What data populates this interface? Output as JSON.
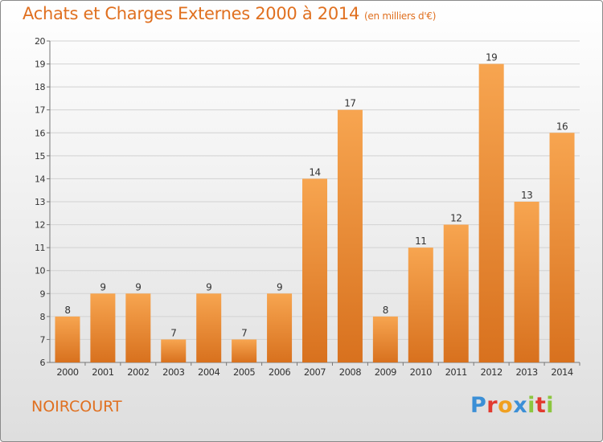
{
  "title": "Achats et Charges Externes 2000 à 2014",
  "subtitle": "(en milliers d'€)",
  "city": "NOIRCOURT",
  "logo": {
    "text": "Proxiti",
    "letters": [
      {
        "ch": "P",
        "color": "#3b8fd6"
      },
      {
        "ch": "r",
        "color": "#e23a2f"
      },
      {
        "ch": "o",
        "color": "#f0a020"
      },
      {
        "ch": "x",
        "color": "#3b8fd6"
      },
      {
        "ch": "i",
        "color": "#8cc63f"
      },
      {
        "ch": "t",
        "color": "#e23a2f"
      },
      {
        "ch": "i",
        "color": "#8cc63f"
      }
    ]
  },
  "colors": {
    "accent": "#e07020",
    "bar_light": "#f7a550",
    "bar_dark": "#d8711e"
  },
  "chart_data": {
    "type": "bar",
    "categories": [
      "2000",
      "2001",
      "2002",
      "2003",
      "2004",
      "2005",
      "2006",
      "2007",
      "2008",
      "2009",
      "2010",
      "2011",
      "2012",
      "2013",
      "2014"
    ],
    "values": [
      8,
      9,
      9,
      7,
      9,
      7,
      9,
      14,
      17,
      8,
      11,
      12,
      19,
      13,
      16
    ],
    "ylim": [
      6,
      20
    ],
    "yticks": [
      6,
      7,
      8,
      9,
      10,
      11,
      12,
      13,
      14,
      15,
      16,
      17,
      18,
      19,
      20
    ],
    "grid": true,
    "legend": "none",
    "xlabel": "",
    "ylabel": ""
  }
}
